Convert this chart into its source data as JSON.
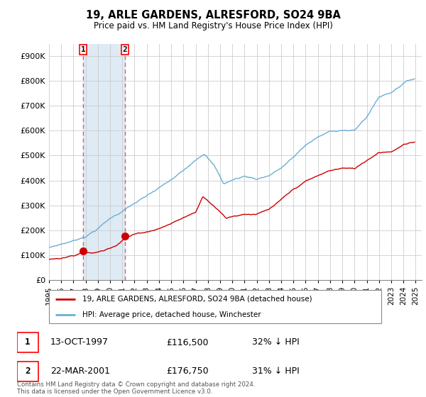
{
  "title": "19, ARLE GARDENS, ALRESFORD, SO24 9BA",
  "subtitle": "Price paid vs. HM Land Registry's House Price Index (HPI)",
  "legend_line1": "19, ARLE GARDENS, ALRESFORD, SO24 9BA (detached house)",
  "legend_line2": "HPI: Average price, detached house, Winchester",
  "transaction1": {
    "label": "1",
    "date": "13-OCT-1997",
    "price": "£116,500",
    "note": "32% ↓ HPI"
  },
  "transaction2": {
    "label": "2",
    "date": "22-MAR-2001",
    "price": "£176,750",
    "note": "31% ↓ HPI"
  },
  "footnote": "Contains HM Land Registry data © Crown copyright and database right 2024.\nThis data is licensed under the Open Government Licence v3.0.",
  "hpi_color": "#6aafd6",
  "price_color": "#cc0000",
  "marker_color": "#cc0000",
  "vline_color": "#e06060",
  "shade_color": "#deeaf4",
  "ylim": [
    0,
    950000
  ],
  "xlim_start": 1995.3,
  "xlim_end": 2025.5,
  "yticks": [
    0,
    100000,
    200000,
    300000,
    400000,
    500000,
    600000,
    700000,
    800000,
    900000
  ],
  "ytick_labels": [
    "£0",
    "£100K",
    "£200K",
    "£300K",
    "£400K",
    "£500K",
    "£600K",
    "£700K",
    "£800K",
    "£900K"
  ],
  "xticks": [
    1995,
    1996,
    1997,
    1998,
    1999,
    2000,
    2001,
    2002,
    2003,
    2004,
    2005,
    2006,
    2007,
    2008,
    2009,
    2010,
    2011,
    2012,
    2013,
    2014,
    2015,
    2016,
    2017,
    2018,
    2019,
    2020,
    2021,
    2022,
    2023,
    2024,
    2025
  ],
  "t1_x": 1997.79,
  "t1_y": 116500,
  "t2_x": 2001.21,
  "t2_y": 176750
}
